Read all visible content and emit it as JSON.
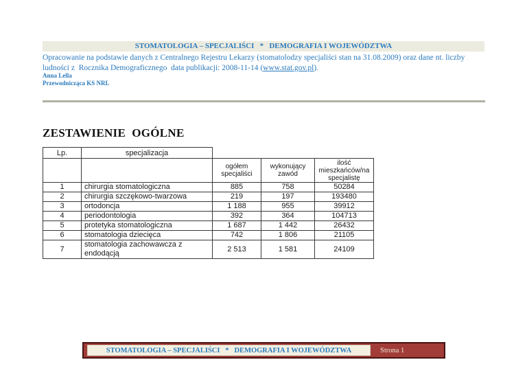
{
  "colors": {
    "accent_blue": "#2b7abc",
    "band_bg": "#ecebdf",
    "divider_gray": "#b1b0a3",
    "footer_maroon": "#a13c39",
    "footer_border": "#431310",
    "footer_cream": "#f3f0e2"
  },
  "header": {
    "title": "STOMATOLOGIA – SPECJALIŚCI   *   DEMOGRAFIA I WOJEWÓDZTWA",
    "intro_line1": "Opracowanie na podstawie danych z Centralnego Rejestru Lekarzy (stomatolodzy specjaliści stan na 31.08.2009) oraz dane nt. liczby",
    "intro_line2_before": "ludności z  Rocznika Demograficznego  data publikacji: 2008-11-14 (",
    "link": "www.stat.gov.pl",
    "intro_line2_after": ").",
    "author": "Anna Lella",
    "author_role": "Przewodnicząca KS NRL"
  },
  "section": {
    "heading": "ZESTAWIENIE  OGÓLNE"
  },
  "table": {
    "header_row1": {
      "lp": "Lp.",
      "specialization": "specjalizacja"
    },
    "header_row2": {
      "total": "ogółem specjaliści",
      "working": "wykonujący zawód",
      "per_capita": "ilość mieszkańców/na specjalistę"
    },
    "rows": [
      [
        "1",
        "chirurgia stomatologiczna",
        "885",
        "758",
        "50284"
      ],
      [
        "2",
        "chirurgia szczękowo-twarzowa",
        "219",
        "197",
        "193480"
      ],
      [
        "3",
        "ortodoncja",
        "1 188",
        "955",
        "39912"
      ],
      [
        "4",
        "periodontologia",
        "392",
        "364",
        "104713"
      ],
      [
        "5",
        "protetyka stomatologiczna",
        "1 687",
        "1 442",
        "26432"
      ],
      [
        "6",
        "stomatologia dziecięca",
        "742",
        "1 806",
        "21105"
      ],
      [
        "7",
        "stomatologia zachowawcza z endodącją",
        "2 513",
        "1 581",
        "24109"
      ]
    ]
  },
  "footer": {
    "title": "STOMATOLOGIA – SPECJALIŚCI   *   DEMOGRAFIA I WOJEWÓDZTWA",
    "page": "Strona 1"
  }
}
